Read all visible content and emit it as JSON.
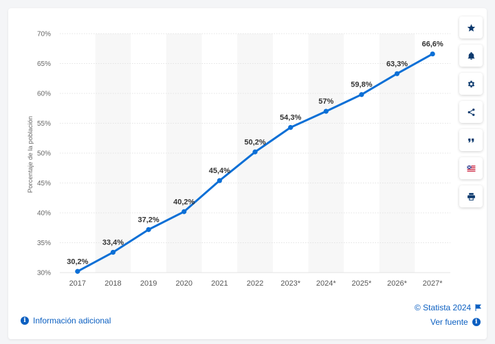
{
  "chart_data": {
    "type": "line",
    "x": [
      "2017",
      "2018",
      "2019",
      "2020",
      "2021",
      "2022",
      "2023*",
      "2024*",
      "2025*",
      "2026*",
      "2027*"
    ],
    "series": [
      {
        "values": [
          30.2,
          33.4,
          37.2,
          40.2,
          45.4,
          50.2,
          54.3,
          57,
          59.8,
          63.3,
          66.6
        ]
      }
    ],
    "data_labels": [
      "30,2%",
      "33,4%",
      "37,2%",
      "40,2%",
      "45,4%",
      "50,2%",
      "54,3%",
      "57%",
      "59,8%",
      "63,3%",
      "66,6%"
    ],
    "ylabel": "Porcentaje de la población",
    "ylim": [
      30,
      70
    ],
    "yticks": [
      30,
      35,
      40,
      45,
      50,
      55,
      60,
      65,
      70
    ],
    "ytick_labels": [
      "30%",
      "35%",
      "40%",
      "45%",
      "50%",
      "55%",
      "60%",
      "65%",
      "70%"
    ],
    "grid": true,
    "line_color": "#0b6fd6",
    "band_color": "#f7f7f7"
  },
  "toolbar": {
    "buttons": [
      "star-icon",
      "bell-icon",
      "gear-icon",
      "share-icon",
      "quote-icon",
      "flag-icon",
      "print-icon"
    ]
  },
  "footer": {
    "info_label": "Información adicional",
    "copyright": "© Statista 2024",
    "source_label": "Ver fuente"
  },
  "colors": {
    "accent": "#0b5fc1",
    "navy": "#0d3a6e"
  }
}
